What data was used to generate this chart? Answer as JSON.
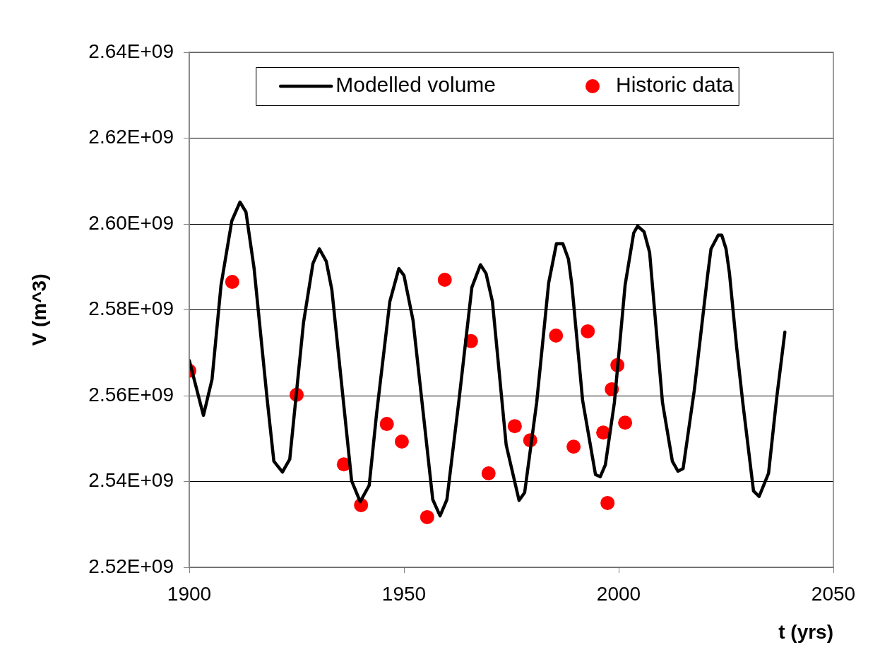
{
  "chart_data": {
    "type": "line",
    "xlabel": "t (yrs)",
    "ylabel": "V (m^3)",
    "xlim": [
      1900,
      2050
    ],
    "xticks": [
      1900,
      1950,
      2000,
      2050
    ],
    "ylim": [
      2520000000,
      2640000000
    ],
    "yticks": [
      {
        "value": 2520000000,
        "label": "2.52E+09"
      },
      {
        "value": 2540000000,
        "label": "2.54E+09"
      },
      {
        "value": 2560000000,
        "label": "2.56E+09"
      },
      {
        "value": 2580000000,
        "label": "2.58E+09"
      },
      {
        "value": 2600000000,
        "label": "2.60E+09"
      },
      {
        "value": 2620000000,
        "label": "2.62E+09"
      },
      {
        "value": 2640000000,
        "label": "2.64E+09"
      }
    ],
    "grid": "y",
    "legend": "top",
    "series": [
      {
        "name": "Modelled volume",
        "type": "line",
        "marker": "none",
        "line_style": "solid",
        "color": "#000000",
        "x": [
          1900,
          1903.3,
          1905.3,
          1907.4,
          1909.9,
          1911.8,
          1913.2,
          1915.1,
          1918.1,
          1919.7,
          1921.7,
          1923.4,
          1926.6,
          1928.8,
          1930.3,
          1931.9,
          1933.2,
          1937.8,
          1939.8,
          1941.9,
          1943.6,
          1946.7,
          1948.8,
          1950,
          1952.1,
          1956.7,
          1958.4,
          1960,
          1962.8,
          1965.8,
          1967.8,
          1969.1,
          1970.6,
          1973.8,
          1976.8,
          1978.1,
          1980.9,
          1983.7,
          1985.5,
          1987,
          1988.3,
          1989.1,
          1991.6,
          1994.6,
          1995.7,
          1996.9,
          1999,
          2001.5,
          2003.5,
          2004.4,
          2005.9,
          2007.2,
          2010.2,
          2012.5,
          2013.8,
          2015,
          2017.6,
          2020.7,
          2021.5,
          2023.2,
          2024,
          2025,
          2025.8,
          2027.5,
          2028.9,
          2031.4,
          2032.7,
          2034.9,
          2036.8,
          2038.7
        ],
        "values": [
          2568200000,
          2555400000,
          2563800000,
          2585800000,
          2600700000,
          2605100000,
          2602800000,
          2589600000,
          2559500000,
          2544700000,
          2542200000,
          2545200000,
          2577000000,
          2590800000,
          2594200000,
          2591300000,
          2584700000,
          2540200000,
          2535300000,
          2539100000,
          2555600000,
          2581900000,
          2589600000,
          2588000000,
          2577600000,
          2535800000,
          2532000000,
          2535800000,
          2558900000,
          2585200000,
          2590500000,
          2588500000,
          2581900000,
          2548500000,
          2535600000,
          2537400000,
          2558400000,
          2586300000,
          2595400000,
          2595400000,
          2591800000,
          2585800000,
          2558900000,
          2541600000,
          2541100000,
          2543900000,
          2558400000,
          2585800000,
          2597900000,
          2599500000,
          2598200000,
          2593400000,
          2558400000,
          2544700000,
          2542400000,
          2543000000,
          2561200000,
          2588000000,
          2594200000,
          2597400000,
          2597400000,
          2594200000,
          2588500000,
          2571000000,
          2558400000,
          2537800000,
          2536500000,
          2541900000,
          2559500000,
          2574800000
        ]
      },
      {
        "name": "Historic data",
        "type": "scatter",
        "marker": "circle",
        "color": "#ff0000",
        "x": [
          1900,
          1910,
          1925,
          1936,
          1940,
          1946,
          1949.5,
          1955.4,
          1959.5,
          1965.6,
          1969.7,
          1975.8,
          1979.4,
          1985.4,
          1989.5,
          1992.8,
          1996.4,
          1997.4,
          1998.4,
          1999.7,
          2001.5
        ],
        "values": [
          2565800000,
          2586500000,
          2560200000,
          2544000000,
          2534500000,
          2553400000,
          2549300000,
          2531700000,
          2587000000,
          2572700000,
          2541900000,
          2552900000,
          2549600000,
          2574000000,
          2548100000,
          2575000000,
          2551400000,
          2535000000,
          2561500000,
          2567100000,
          2553700000
        ]
      }
    ]
  }
}
